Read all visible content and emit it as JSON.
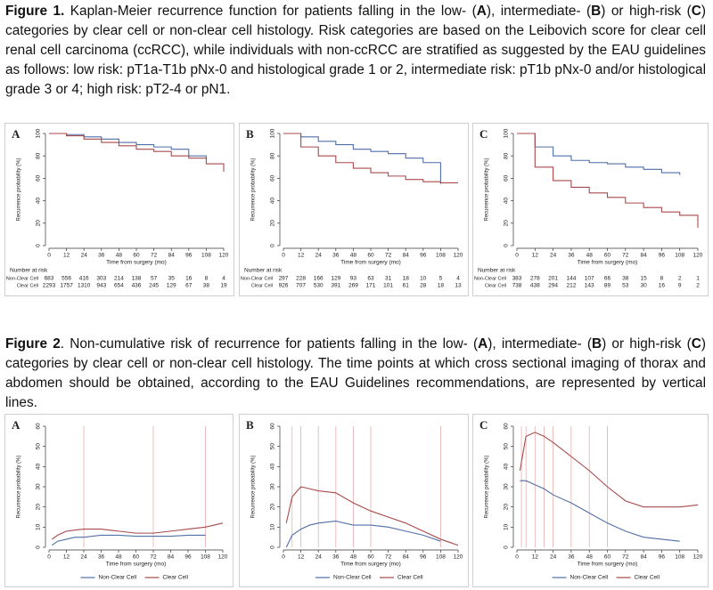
{
  "figure1": {
    "label": "Figure 1.",
    "parts": [
      " Kaplan-Meier recurrence function for patients falling in the low- (",
      "A",
      "), intermediate- (",
      "B",
      ") or high-risk (",
      "C",
      ") categories by clear cell or non-clear cell histology. Risk categories are based on the Leibovich score for clear cell renal cell carcinoma (ccRCC), while individuals with non-ccRCC are stratified as suggested by the EAU guidelines as follows: low risk: pT1a-T1b pNx-0 and histological grade 1 or 2, intermediate risk: pT1b pNx-0 and/or histological grade 3 or 4; high risk: pT2-4 or pN1."
    ]
  },
  "figure2": {
    "label": "Figure 2",
    "parts": [
      ". Non-cumulative risk of recurrence for patients falling in the low- (",
      "A",
      "), intermediate- (",
      "B",
      ") or high-risk (",
      "C",
      ") categories by clear cell or non-clear cell histology. The time points at which cross sectional imaging of thorax and abdomen should be obtained, according to the EAU Guidelines recommendations, are represented by vertical lines."
    ]
  },
  "chart_data": [
    {
      "type": "line",
      "step": true,
      "panel": "A",
      "ylabel": "Recurrence probability (%)",
      "xlabel": "Time from surgery (mo)",
      "x": [
        0,
        12,
        24,
        36,
        48,
        60,
        72,
        84,
        96,
        108,
        120
      ],
      "xlim": [
        0,
        120
      ],
      "xticks": [
        0,
        12,
        24,
        36,
        48,
        60,
        72,
        84,
        96,
        108,
        120
      ],
      "ylim": [
        0,
        100
      ],
      "yticks": [
        0,
        20,
        40,
        60,
        80,
        100
      ],
      "series": [
        {
          "name": "Non-Clear Cell",
          "color": "#4f6fa8",
          "values": [
            100,
            99,
            97,
            95,
            92,
            90,
            88,
            86,
            80,
            77,
            null
          ]
        },
        {
          "name": "Clear Cell",
          "color": "#a8494a",
          "values": [
            100,
            98,
            95,
            92,
            89,
            86,
            84,
            80,
            78,
            73,
            66
          ]
        }
      ],
      "risk_table": {
        "title": "Number at risk",
        "rows": [
          [
            683,
            556,
            416,
            303,
            214,
            138,
            57,
            35,
            16,
            8,
            4
          ],
          [
            2293,
            1757,
            1310,
            943,
            654,
            436,
            245,
            129,
            67,
            38,
            19
          ]
        ]
      }
    },
    {
      "type": "line",
      "step": true,
      "panel": "B",
      "ylabel": "Recurrence probability (%)",
      "xlabel": "Time from surgery (mo)",
      "x": [
        0,
        12,
        24,
        36,
        48,
        60,
        72,
        84,
        96,
        108,
        120
      ],
      "xlim": [
        0,
        120
      ],
      "xticks": [
        0,
        12,
        24,
        36,
        48,
        60,
        72,
        84,
        96,
        108,
        120
      ],
      "ylim": [
        0,
        100
      ],
      "yticks": [
        0,
        20,
        40,
        60,
        80,
        100
      ],
      "series": [
        {
          "name": "Non-Clear Cell",
          "color": "#4f6fa8",
          "values": [
            100,
            97,
            93,
            90,
            86,
            84,
            82,
            78,
            74,
            55,
            null
          ]
        },
        {
          "name": "Clear Cell",
          "color": "#a8494a",
          "values": [
            100,
            88,
            80,
            74,
            69,
            65,
            62,
            59,
            57,
            56,
            56
          ]
        }
      ],
      "risk_table": {
        "title": "Number at risk",
        "rows": [
          [
            297,
            228,
            166,
            129,
            93,
            63,
            31,
            18,
            10,
            5,
            4
          ],
          [
            926,
            707,
            530,
            391,
            269,
            171,
            101,
            61,
            28,
            18,
            13
          ]
        ]
      }
    },
    {
      "type": "line",
      "step": true,
      "panel": "C",
      "ylabel": "Recurrence probability (%)",
      "xlabel": "Time from surgery (mo)",
      "x": [
        0,
        12,
        24,
        36,
        48,
        60,
        72,
        84,
        96,
        108,
        120
      ],
      "xlim": [
        0,
        120
      ],
      "xticks": [
        0,
        12,
        24,
        36,
        48,
        60,
        72,
        84,
        96,
        108,
        120
      ],
      "ylim": [
        0,
        100
      ],
      "yticks": [
        0,
        20,
        40,
        60,
        80,
        100
      ],
      "series": [
        {
          "name": "Non-Clear Cell",
          "color": "#4f6fa8",
          "values": [
            100,
            88,
            80,
            76,
            74,
            73,
            70,
            68,
            65,
            63,
            null
          ]
        },
        {
          "name": "Clear Cell",
          "color": "#a8494a",
          "values": [
            100,
            70,
            58,
            52,
            47,
            43,
            38,
            34,
            30,
            27,
            16
          ]
        }
      ],
      "risk_table": {
        "title": "Number at risk",
        "rows": [
          [
            383,
            278,
            201,
            144,
            107,
            66,
            38,
            15,
            8,
            2,
            1
          ],
          [
            738,
            438,
            294,
            212,
            143,
            89,
            53,
            30,
            16,
            9,
            2
          ]
        ]
      }
    },
    {
      "type": "line",
      "panel": "A",
      "ylabel": "Recurrence probability (%)",
      "xlabel": "Time from surgery (mo)",
      "legend": "bottom",
      "x": [
        2,
        6,
        12,
        18,
        24,
        36,
        48,
        60,
        72,
        84,
        96,
        108,
        120
      ],
      "xlim": [
        0,
        120
      ],
      "xticks": [
        0,
        12,
        24,
        36,
        48,
        60,
        72,
        84,
        96,
        108,
        120
      ],
      "ylim": [
        0,
        60
      ],
      "yticks": [
        0,
        10,
        20,
        30,
        40,
        50,
        60
      ],
      "vlines": [
        24,
        72,
        108
      ],
      "series": [
        {
          "name": "Non-Clear Cell",
          "color": "#4f6fa8",
          "values": [
            1,
            3,
            4,
            5,
            5,
            6,
            6,
            5.5,
            5.5,
            5.5,
            6,
            6,
            null
          ]
        },
        {
          "name": "Clear Cell",
          "color": "#a8494a",
          "values": [
            4,
            6,
            8,
            8.5,
            9,
            9,
            8,
            7,
            7,
            8,
            9,
            10,
            12
          ]
        }
      ]
    },
    {
      "type": "line",
      "panel": "B",
      "ylabel": "Recurrence probability (%)",
      "xlabel": "Time from surgery (mo)",
      "legend": "bottom",
      "x": [
        2,
        6,
        12,
        18,
        24,
        36,
        48,
        60,
        72,
        84,
        96,
        108,
        120
      ],
      "xlim": [
        0,
        120
      ],
      "xticks": [
        0,
        12,
        24,
        36,
        48,
        60,
        72,
        84,
        96,
        108,
        120
      ],
      "ylim": [
        0,
        60
      ],
      "yticks": [
        0,
        10,
        20,
        30,
        40,
        50,
        60
      ],
      "vlines": [
        6,
        12,
        24,
        36,
        48,
        60,
        108
      ],
      "series": [
        {
          "name": "Non-Clear Cell",
          "color": "#4f6fa8",
          "values": [
            0,
            6,
            9,
            11,
            12,
            13,
            11,
            11,
            10,
            8,
            6,
            3,
            null
          ]
        },
        {
          "name": "Clear Cell",
          "color": "#a8494a",
          "values": [
            12,
            25,
            30,
            29,
            28,
            27,
            22,
            18,
            15,
            12,
            8,
            4,
            1
          ]
        }
      ]
    },
    {
      "type": "line",
      "panel": "C",
      "ylabel": "Recurrence probability (%)",
      "xlabel": "Time from surgery (mo)",
      "legend": "bottom",
      "x": [
        2,
        6,
        12,
        18,
        24,
        36,
        48,
        60,
        72,
        84,
        96,
        108,
        120
      ],
      "xlim": [
        0,
        120
      ],
      "xticks": [
        0,
        12,
        24,
        36,
        48,
        60,
        72,
        84,
        96,
        108,
        120
      ],
      "ylim": [
        0,
        60
      ],
      "yticks": [
        0,
        10,
        20,
        30,
        40,
        50,
        60
      ],
      "vlines": [
        3,
        6,
        12,
        18,
        24,
        36,
        48,
        60
      ],
      "series": [
        {
          "name": "Non-Clear Cell",
          "color": "#4f6fa8",
          "values": [
            33,
            33,
            31,
            29,
            26,
            22,
            17,
            12,
            8,
            5,
            4,
            3,
            null
          ]
        },
        {
          "name": "Clear Cell",
          "color": "#a8494a",
          "values": [
            38,
            55,
            57,
            55,
            52,
            45,
            38,
            30,
            23,
            20,
            20,
            20,
            21
          ]
        }
      ]
    }
  ]
}
